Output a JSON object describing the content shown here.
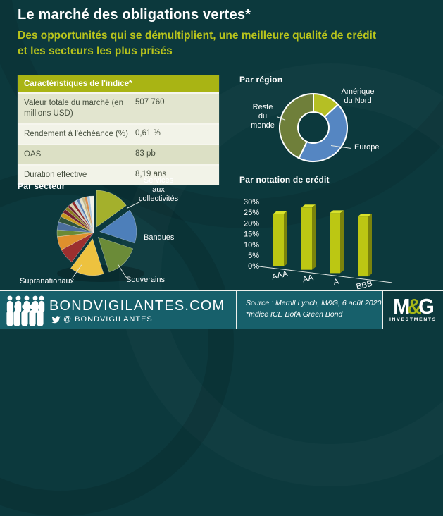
{
  "colors": {
    "background": "#0c393d",
    "accent": "#b9c41c",
    "footer_background": "#17606b",
    "table_header_background": "#a9b414",
    "bar_front": "#bcc713",
    "bar_side": "#7a830c",
    "bar_top": "#d9e22b",
    "leader_line": "#dfe5e2"
  },
  "header": {
    "title": "Le marché des obligations vertes*",
    "subtitle": "Des opportunités qui se démultiplient, une meilleure qualité de crédit et les secteurs les plus prisés"
  },
  "index_table": {
    "header": "Caractéristiques de l'indice*",
    "rows": [
      {
        "label": "Valeur totale du marché (en millions USD)",
        "value": "507 760"
      },
      {
        "label": "Rendement à l'échéance (%)",
        "value": "0,61 %"
      },
      {
        "label": "OAS",
        "value": "83 pb"
      },
      {
        "label": "Duration effective",
        "value": "8,19 ans"
      }
    ]
  },
  "chart_data": [
    {
      "type": "pie",
      "subtype": "donut",
      "title": "Par région",
      "legend_position": "labels-around",
      "slices": [
        {
          "label": "Amérique du Nord",
          "value": 13,
          "color": "#b5bf24"
        },
        {
          "label": "Europe",
          "value": 44,
          "color": "#5586c2"
        },
        {
          "label": "Reste du monde",
          "value": 43,
          "color": "#6f7f3a"
        }
      ]
    },
    {
      "type": "pie",
      "subtype": "exploded-3d",
      "title": "Par secteur",
      "legend_position": "labels-around",
      "slices": [
        {
          "label": "Services aux collectivités",
          "value": 15,
          "color": "#a4b02c",
          "explode": true
        },
        {
          "label": "Banques",
          "value": 15,
          "color": "#4d7fba",
          "explode": true
        },
        {
          "label": "Souverains",
          "value": 15,
          "color": "#6b8b38",
          "explode": true
        },
        {
          "label": "Supranationaux",
          "value": 15,
          "color": "#edc23f",
          "explode": true
        },
        {
          "label": "",
          "value": 7,
          "color": "#9c2f2f"
        },
        {
          "label": "",
          "value": 6,
          "color": "#df8f2d"
        },
        {
          "label": "",
          "value": 3,
          "color": "#6a8a36"
        },
        {
          "label": "",
          "value": 3.5,
          "color": "#4c6f9c"
        },
        {
          "label": "",
          "value": 2.5,
          "color": "#31543a"
        },
        {
          "label": "",
          "value": 2,
          "color": "#c79a1e"
        },
        {
          "label": "",
          "value": 1.7,
          "color": "#722031"
        },
        {
          "label": "",
          "value": 1.5,
          "color": "#8a7d1e"
        },
        {
          "label": "",
          "value": 1.2,
          "color": "#6e2430"
        },
        {
          "label": "",
          "value": 1.2,
          "color": "#d8cfa8"
        },
        {
          "label": "",
          "value": 1.2,
          "color": "#8e2626"
        },
        {
          "label": "",
          "value": 1.2,
          "color": "#b8cfe0"
        },
        {
          "label": "",
          "value": 1.2,
          "color": "#5b7fae"
        },
        {
          "label": "",
          "value": 1.2,
          "color": "#e8e3c8"
        },
        {
          "label": "",
          "value": 1.2,
          "color": "#c2b98a"
        },
        {
          "label": "",
          "value": 1.2,
          "color": "#d78e4e"
        },
        {
          "label": "",
          "value": 1.2,
          "color": "#aac4dc"
        },
        {
          "label": "",
          "value": 1.7,
          "color": "#f2f2ea"
        }
      ]
    },
    {
      "type": "bar",
      "subtype": "3d-column",
      "title": "Par notation de crédit",
      "categories": [
        "AAA",
        "AA",
        "A",
        "BBB"
      ],
      "values": [
        22,
        26,
        25,
        25
      ],
      "unit": "%",
      "ylim": [
        0,
        30
      ],
      "ytick_labels": [
        "30%",
        "25%",
        "20%",
        "15%",
        "10%",
        "5%",
        "0%"
      ],
      "grid": false,
      "bar_color": "#bcc713"
    }
  ],
  "footer": {
    "site": "BONDVIGILANTES.COM",
    "handle_prefix": "@",
    "handle": "BONDVIGILANTES",
    "source_line1": "Source : Merrill Lynch, M&G, 6 août 2020",
    "source_line2": "*Indice ICE BofA Green Bond",
    "logo": {
      "m": "M",
      "amp": "&",
      "g": "G",
      "sub": "INVESTMENTS"
    }
  }
}
